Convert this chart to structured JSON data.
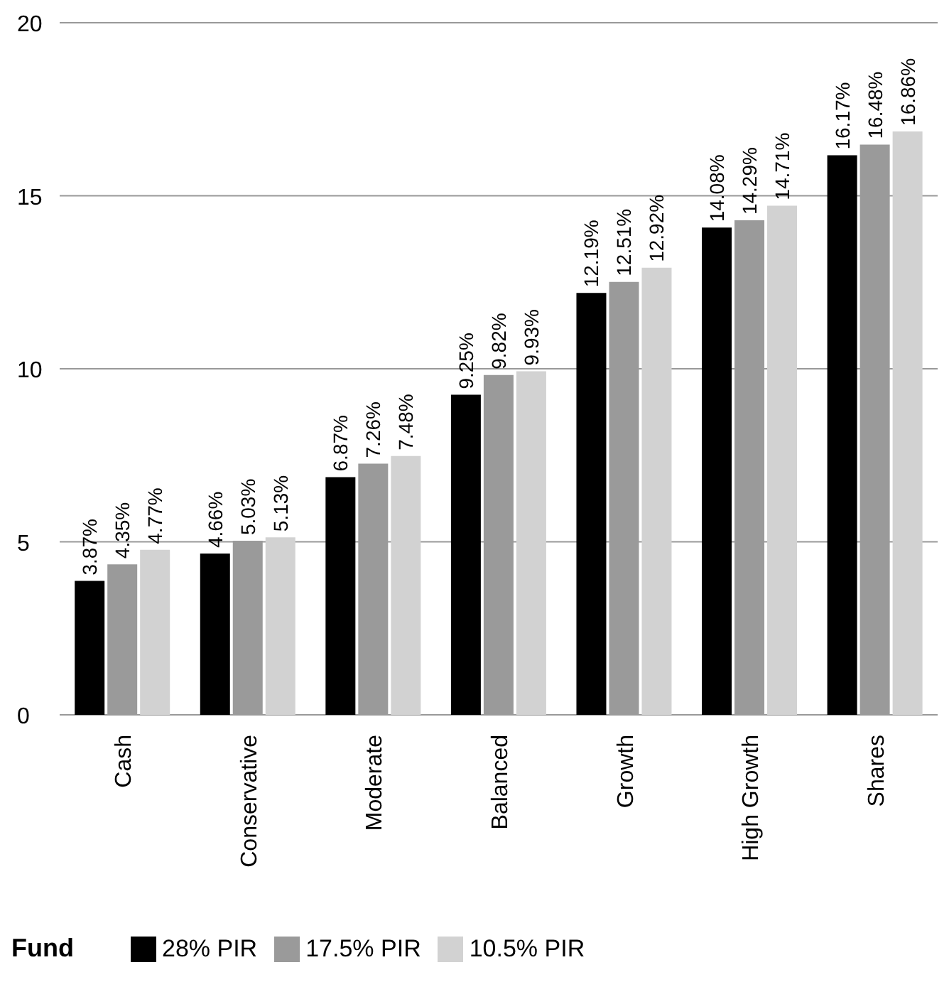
{
  "chart_data": {
    "type": "bar",
    "categories": [
      "Cash",
      "Conservative",
      "Moderate",
      "Balanced",
      "Growth",
      "High Growth",
      "Shares"
    ],
    "series": [
      {
        "name": "28% PIR",
        "color": "#000000",
        "values": [
          3.87,
          4.66,
          6.87,
          9.25,
          12.19,
          14.08,
          16.17
        ],
        "value_labels": [
          "3.87%",
          "4.66%",
          "6.87%",
          "9.25%",
          "12.19%",
          "14.08%",
          "16.17%"
        ]
      },
      {
        "name": "17.5% PIR",
        "color": "#9a9a9a",
        "values": [
          4.35,
          5.03,
          7.26,
          9.82,
          12.51,
          14.29,
          16.48
        ],
        "value_labels": [
          "4.35%",
          "5.03%",
          "7.26%",
          "9.82%",
          "12.51%",
          "14.29%",
          "16.48%"
        ]
      },
      {
        "name": "10.5% PIR",
        "color": "#d2d2d2",
        "values": [
          4.77,
          5.13,
          7.48,
          9.93,
          12.92,
          14.71,
          16.86
        ],
        "value_labels": [
          "4.77%",
          "5.13%",
          "7.48%",
          "9.93%",
          "12.92%",
          "14.71%",
          "16.86%"
        ]
      }
    ],
    "legend_title": "Fund",
    "legend": "bottom",
    "grid": "y",
    "ylim": [
      0,
      20
    ],
    "yticks": [
      0,
      5,
      10,
      15,
      20
    ]
  }
}
